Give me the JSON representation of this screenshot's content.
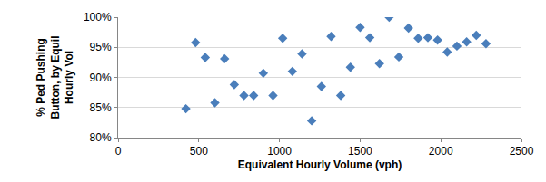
{
  "chart_data": {
    "type": "scatter",
    "xlabel": "Equivalent Hourly Volume (vph)",
    "ylabel": [
      "% Ped Pushing",
      "Button, by Equil",
      "Hourly Vol"
    ],
    "x": [
      420,
      480,
      540,
      600,
      660,
      720,
      780,
      840,
      900,
      960,
      1020,
      1080,
      1140,
      1200,
      1260,
      1320,
      1380,
      1440,
      1500,
      1560,
      1620,
      1680,
      1740,
      1800,
      1860,
      1920,
      1980,
      2040,
      2100,
      2160,
      2220,
      2280
    ],
    "values": [
      84.8,
      95.8,
      93.3,
      85.8,
      93.1,
      88.8,
      87.0,
      87.0,
      90.7,
      87.0,
      96.5,
      91.0,
      93.9,
      82.8,
      88.5,
      96.8,
      87.0,
      91.7,
      98.3,
      96.6,
      92.3,
      100.0,
      93.4,
      98.2,
      96.5,
      96.6,
      96.2,
      94.2,
      95.2,
      95.9,
      97.0,
      95.6
    ],
    "color": "#4a7ebb",
    "marker": "diamond",
    "xlim": [
      0,
      2500
    ],
    "xticks": [
      0,
      500,
      1000,
      1500,
      2000,
      2500
    ],
    "ylim": [
      80,
      100
    ],
    "yticks": [
      {
        "value": 80,
        "label": "80%"
      },
      {
        "value": 85,
        "label": "85%"
      },
      {
        "value": 90,
        "label": "90%"
      },
      {
        "value": 95,
        "label": "95%"
      },
      {
        "value": 100,
        "label": "100%"
      }
    ],
    "grid": true
  }
}
